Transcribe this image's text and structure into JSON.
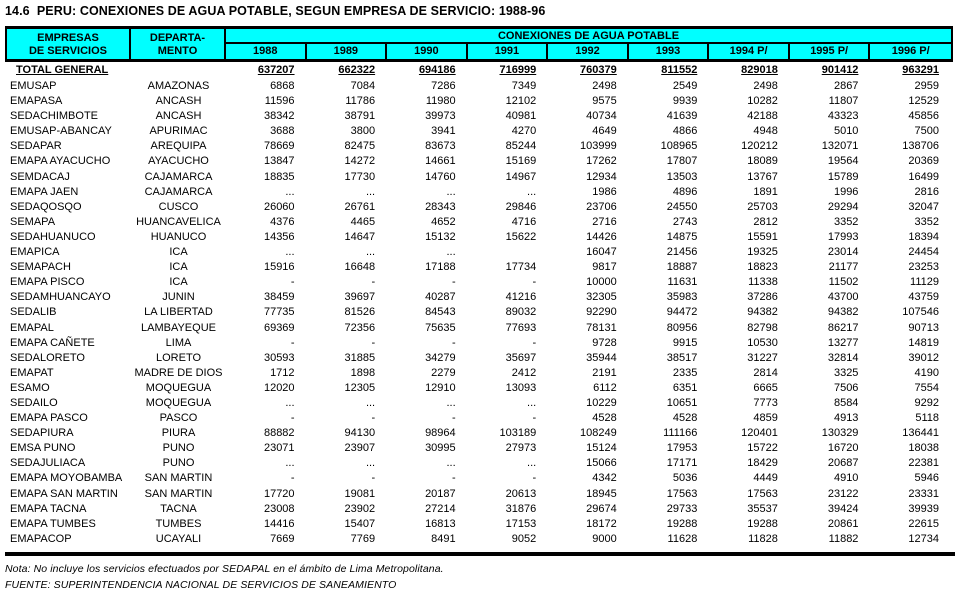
{
  "title": "14.6  PERU: CONEXIONES DE AGUA POTABLE, SEGUN EMPRESA DE SERVICIO: 1988-96",
  "colors": {
    "header_bg": "#00FFFF",
    "border": "#000000",
    "text": "#000000",
    "page_bg": "#FFFFFF"
  },
  "table": {
    "col1_header_line1": "EMPRESAS",
    "col1_header_line2": "DE SERVICIOS",
    "col2_header_line1": "DEPARTA-",
    "col2_header_line2": "MENTO",
    "span_header": "CONEXIONES DE AGUA POTABLE",
    "year_headers": [
      "1988",
      "1989",
      "1990",
      "1991",
      "1992",
      "1993",
      "1994 P/",
      "1995 P/",
      "1996 P/"
    ],
    "total_row": {
      "label": "TOTAL GENERAL",
      "values": [
        "637207",
        "662322",
        "694186",
        "716999",
        "760379",
        "811552",
        "829018",
        "901412",
        "963291"
      ]
    },
    "rows": [
      {
        "empresa": "EMUSAP",
        "depto": "AMAZONAS",
        "values": [
          "6868",
          "7084",
          "7286",
          "7349",
          "2498",
          "2549",
          "2498",
          "2867",
          "2959"
        ]
      },
      {
        "empresa": "EMAPASA",
        "depto": "ANCASH",
        "values": [
          "11596",
          "11786",
          "11980",
          "12102",
          "9575",
          "9939",
          "10282",
          "11807",
          "12529"
        ]
      },
      {
        "empresa": "SEDACHIMBOTE",
        "depto": "ANCASH",
        "values": [
          "38342",
          "38791",
          "39973",
          "40981",
          "40734",
          "41639",
          "42188",
          "43323",
          "45856"
        ]
      },
      {
        "empresa": "EMUSAP-ABANCAY",
        "depto": "APURIMAC",
        "values": [
          "3688",
          "3800",
          "3941",
          "4270",
          "4649",
          "4866",
          "4948",
          "5010",
          "7500"
        ]
      },
      {
        "empresa": "SEDAPAR",
        "depto": "AREQUIPA",
        "values": [
          "78669",
          "82475",
          "83673",
          "85244",
          "103999",
          "108965",
          "120212",
          "132071",
          "138706"
        ]
      },
      {
        "empresa": "EMAPA AYACUCHO",
        "depto": "AYACUCHO",
        "values": [
          "13847",
          "14272",
          "14661",
          "15169",
          "17262",
          "17807",
          "18089",
          "19564",
          "20369"
        ]
      },
      {
        "empresa": "SEMDACAJ",
        "depto": "CAJAMARCA",
        "values": [
          "18835",
          "17730",
          "14760",
          "14967",
          "12934",
          "13503",
          "13767",
          "15789",
          "16499"
        ]
      },
      {
        "empresa": "EMAPA JAEN",
        "depto": "CAJAMARCA",
        "values": [
          "...",
          "...",
          "...",
          "...",
          "1986",
          "4896",
          "1891",
          "1996",
          "2816"
        ]
      },
      {
        "empresa": "SEDAQOSQO",
        "depto": "CUSCO",
        "values": [
          "26060",
          "26761",
          "28343",
          "29846",
          "23706",
          "24550",
          "25703",
          "29294",
          "32047"
        ]
      },
      {
        "empresa": "SEMAPA",
        "depto": "HUANCAVELICA",
        "values": [
          "4376",
          "4465",
          "4652",
          "4716",
          "2716",
          "2743",
          "2812",
          "3352",
          "3352"
        ]
      },
      {
        "empresa": "SEDAHUANUCO",
        "depto": "HUANUCO",
        "values": [
          "14356",
          "14647",
          "15132",
          "15622",
          "14426",
          "14875",
          "15591",
          "17993",
          "18394"
        ]
      },
      {
        "empresa": "EMAPICA",
        "depto": "ICA",
        "values": [
          "...",
          "...",
          "...",
          "",
          "16047",
          "21456",
          "19325",
          "23014",
          "24454"
        ]
      },
      {
        "empresa": "SEMAPACH",
        "depto": "ICA",
        "values": [
          "15916",
          "16648",
          "17188",
          "17734",
          "9817",
          "18887",
          "18823",
          "21177",
          "23253"
        ]
      },
      {
        "empresa": "EMAPA PISCO",
        "depto": "ICA",
        "values": [
          "-",
          "-",
          "-",
          "-",
          "10000",
          "11631",
          "11338",
          "11502",
          "11129"
        ]
      },
      {
        "empresa": "SEDAMHUANCAYO",
        "depto": "JUNIN",
        "values": [
          "38459",
          "39697",
          "40287",
          "41216",
          "32305",
          "35983",
          "37286",
          "43700",
          "43759"
        ]
      },
      {
        "empresa": "SEDALIB",
        "depto": "LA LIBERTAD",
        "values": [
          "77735",
          "81526",
          "84543",
          "89032",
          "92290",
          "94472",
          "94382",
          "94382",
          "107546"
        ]
      },
      {
        "empresa": "EMAPAL",
        "depto": "LAMBAYEQUE",
        "values": [
          "69369",
          "72356",
          "75635",
          "77693",
          "78131",
          "80956",
          "82798",
          "86217",
          "90713"
        ]
      },
      {
        "empresa": "EMAPA CAÑETE",
        "depto": "LIMA",
        "values": [
          "-",
          "-",
          "-",
          "-",
          "9728",
          "9915",
          "10530",
          "13277",
          "14819"
        ]
      },
      {
        "empresa": "SEDALORETO",
        "depto": "LORETO",
        "values": [
          "30593",
          "31885",
          "34279",
          "35697",
          "35944",
          "38517",
          "31227",
          "32814",
          "39012"
        ]
      },
      {
        "empresa": "EMAPAT",
        "depto": "MADRE DE DIOS",
        "values": [
          "1712",
          "1898",
          "2279",
          "2412",
          "2191",
          "2335",
          "2814",
          "3325",
          "4190"
        ]
      },
      {
        "empresa": "ESAMO",
        "depto": "MOQUEGUA",
        "values": [
          "12020",
          "12305",
          "12910",
          "13093",
          "6112",
          "6351",
          "6665",
          "7506",
          "7554"
        ]
      },
      {
        "empresa": "SEDAILO",
        "depto": "MOQUEGUA",
        "values": [
          "...",
          "...",
          "...",
          "...",
          "10229",
          "10651",
          "7773",
          "8584",
          "9292"
        ]
      },
      {
        "empresa": "EMAPA PASCO",
        "depto": "PASCO",
        "values": [
          "-",
          "-",
          "-",
          "-",
          "4528",
          "4528",
          "4859",
          "4913",
          "5118"
        ]
      },
      {
        "empresa": "SEDAPIURA",
        "depto": "PIURA",
        "values": [
          "88882",
          "94130",
          "98964",
          "103189",
          "108249",
          "111166",
          "120401",
          "130329",
          "136441"
        ]
      },
      {
        "empresa": "EMSA PUNO",
        "depto": "PUNO",
        "values": [
          "23071",
          "23907",
          "30995",
          "27973",
          "15124",
          "17953",
          "15722",
          "16720",
          "18038"
        ]
      },
      {
        "empresa": "SEDAJULIACA",
        "depto": "PUNO",
        "values": [
          "...",
          "...",
          "...",
          "...",
          "15066",
          "17171",
          "18429",
          "20687",
          "22381"
        ]
      },
      {
        "empresa": "EMAPA MOYOBAMBA",
        "depto": "SAN MARTIN",
        "values": [
          "-",
          "-",
          "-",
          "-",
          "4342",
          "5036",
          "4449",
          "4910",
          "5946"
        ]
      },
      {
        "empresa": "EMAPA SAN MARTIN",
        "depto": "SAN MARTIN",
        "values": [
          "17720",
          "19081",
          "20187",
          "20613",
          "18945",
          "17563",
          "17563",
          "23122",
          "23331"
        ]
      },
      {
        "empresa": "EMAPA TACNA",
        "depto": "TACNA",
        "values": [
          "23008",
          "23902",
          "27214",
          "31876",
          "29674",
          "29733",
          "35537",
          "39424",
          "39939"
        ]
      },
      {
        "empresa": "EMAPA TUMBES",
        "depto": "TUMBES",
        "values": [
          "14416",
          "15407",
          "16813",
          "17153",
          "18172",
          "19288",
          "19288",
          "20861",
          "22615"
        ]
      },
      {
        "empresa": "EMAPACOP",
        "depto": "UCAYALI",
        "values": [
          "7669",
          "7769",
          "8491",
          "9052",
          "9000",
          "11628",
          "11828",
          "11882",
          "12734"
        ]
      }
    ]
  },
  "notes": {
    "nota": "Nota: No incluye los servicios efectuados por SEDAPAL en el ámbito de Lima Metropolitana.",
    "fuente": "FUENTE: SUPERINTENDENCIA NACIONAL DE SERVICIOS DE SANEAMIENTO"
  }
}
